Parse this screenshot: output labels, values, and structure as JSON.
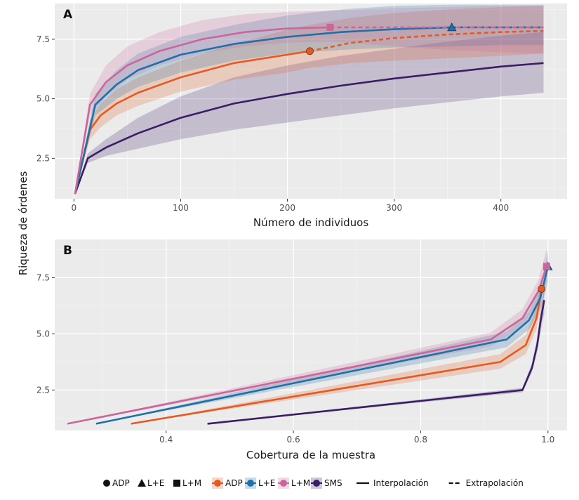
{
  "chart_data": [
    {
      "type": "line",
      "panel": "A",
      "xlabel": "Número de individuos",
      "ylabel": "Riqueza de órdenes",
      "xlim": [
        -18,
        462
      ],
      "ylim": [
        0.8,
        9.0
      ],
      "xticks": [
        0,
        100,
        200,
        300,
        400
      ],
      "yticks": [
        2.5,
        5.0,
        7.5
      ],
      "ytick_labels": [
        "2.5",
        "5.0",
        "7.5"
      ],
      "grid": true,
      "series": [
        {
          "name": "SMS",
          "color": "#3b1d66",
          "observed": {
            "x": [
              1,
              13,
              30,
              60,
              100,
              150,
              200,
              250,
              300,
              350,
              400,
              440
            ],
            "y": [
              1.0,
              2.5,
              2.95,
              3.55,
              4.2,
              4.8,
              5.2,
              5.55,
              5.85,
              6.1,
              6.35,
              6.5
            ]
          },
          "lower": [
            1.0,
            2.3,
            2.6,
            2.9,
            3.3,
            3.7,
            4.0,
            4.3,
            4.6,
            4.85,
            5.1,
            5.25
          ],
          "upper": [
            1.0,
            2.7,
            3.3,
            4.2,
            5.1,
            5.9,
            6.4,
            6.8,
            7.1,
            7.4,
            7.65,
            7.8
          ]
        },
        {
          "name": "ADP",
          "color": "#e35a22",
          "observed": {
            "x": [
              1,
              15,
              25,
              40,
              60,
              100,
              150,
              200,
              221
            ],
            "y": [
              1.0,
              3.7,
              4.3,
              4.8,
              5.25,
              5.9,
              6.5,
              6.85,
              7.0
            ]
          },
          "extrapolated": {
            "x": [
              221,
              260,
              300,
              350,
              400,
              440
            ],
            "y": [
              7.0,
              7.35,
              7.55,
              7.7,
              7.8,
              7.85
            ]
          },
          "marker_at": 221,
          "lower": [
            1.0,
            3.3,
            3.8,
            4.3,
            4.7,
            5.3,
            5.8,
            6.1,
            6.3,
            6.5,
            6.6,
            6.7,
            6.8,
            6.9
          ],
          "upper": [
            1.0,
            4.1,
            4.8,
            5.4,
            5.9,
            6.6,
            7.3,
            7.9,
            8.1,
            8.4,
            8.6,
            8.75,
            8.85,
            8.9
          ],
          "band_x": [
            1,
            15,
            25,
            40,
            60,
            100,
            150,
            200,
            221,
            260,
            300,
            350,
            400,
            440
          ]
        },
        {
          "name": "L+E",
          "color": "#1f6fa8",
          "observed": {
            "x": [
              1,
              20,
              40,
              60,
              100,
              150,
              200,
              250,
              300,
              354
            ],
            "y": [
              1.0,
              4.75,
              5.6,
              6.2,
              6.85,
              7.3,
              7.6,
              7.8,
              7.92,
              8.0
            ]
          },
          "extrapolated": {
            "x": [
              354,
              400,
              440
            ],
            "y": [
              8.0,
              8.0,
              8.0
            ]
          },
          "marker_at": 354,
          "lower": [
            1.0,
            4.3,
            5.0,
            5.5,
            6.1,
            6.6,
            6.9,
            7.05,
            7.15,
            7.2,
            7.25,
            7.25
          ],
          "upper": [
            1.0,
            5.2,
            6.2,
            6.9,
            7.6,
            8.1,
            8.5,
            8.75,
            8.9,
            8.95,
            8.95,
            8.95
          ],
          "band_x": [
            1,
            20,
            40,
            60,
            100,
            150,
            200,
            250,
            300,
            354,
            400,
            440
          ]
        },
        {
          "name": "L+M",
          "color": "#c9679b",
          "observed": {
            "x": [
              1,
              15,
              30,
              50,
              80,
              120,
              160,
              200,
              240
            ],
            "y": [
              1.0,
              4.75,
              5.7,
              6.4,
              7.0,
              7.5,
              7.8,
              7.95,
              8.0
            ]
          },
          "extrapolated": {
            "x": [
              240,
              300,
              350,
              400,
              440
            ],
            "y": [
              8.0,
              8.0,
              8.0,
              8.0,
              8.0
            ]
          },
          "marker_at": 240,
          "lower": [
            1.0,
            4.3,
            5.1,
            5.8,
            6.4,
            6.9,
            7.2,
            7.35,
            7.4,
            7.2,
            7.05,
            6.95,
            6.9
          ],
          "upper": [
            1.0,
            5.2,
            6.4,
            7.2,
            7.8,
            8.3,
            8.55,
            8.65,
            8.7,
            8.8,
            8.85,
            8.9,
            8.9
          ],
          "band_x": [
            1,
            15,
            30,
            50,
            80,
            120,
            160,
            200,
            240,
            300,
            350,
            400,
            440
          ]
        }
      ]
    },
    {
      "type": "line",
      "panel": "B",
      "xlabel": "Cobertura de la muestra",
      "ylabel": "Riqueza de órdenes",
      "xlim": [
        0.225,
        1.03
      ],
      "ylim": [
        0.7,
        9.2
      ],
      "xticks": [
        0.4,
        0.6,
        0.8,
        1.0
      ],
      "yticks": [
        2.5,
        5.0,
        7.5
      ],
      "ytick_labels": [
        "2.5",
        "5.0",
        "7.5"
      ],
      "grid": true,
      "series": [
        {
          "name": "SMS",
          "color": "#3b1d66",
          "observed": {
            "x": [
              0.465,
              0.96,
              0.975,
              0.983,
              0.988,
              0.991,
              0.994
            ],
            "y": [
              1.0,
              2.5,
              3.5,
              4.5,
              5.5,
              6.0,
              6.5
            ]
          },
          "lower": [
            1.0,
            2.4,
            3.3,
            4.2,
            5.0,
            5.5,
            5.9
          ],
          "upper": [
            1.0,
            2.6,
            3.7,
            4.8,
            6.0,
            6.5,
            7.1
          ]
        },
        {
          "name": "ADP",
          "color": "#e35a22",
          "observed": {
            "x": [
              0.345,
              0.925,
              0.965,
              0.982,
              0.99
            ],
            "y": [
              1.0,
              3.75,
              4.5,
              5.7,
              7.0
            ]
          },
          "marker_at": 0.99,
          "marker_y": 7.0,
          "lower": [
            1.0,
            3.45,
            4.1,
            5.2,
            6.4
          ],
          "upper": [
            1.0,
            4.1,
            4.95,
            6.2,
            7.6
          ]
        },
        {
          "name": "L+E",
          "color": "#1f6fa8",
          "observed": {
            "x": [
              0.29,
              0.935,
              0.97,
              0.988,
              1.0
            ],
            "y": [
              1.0,
              4.75,
              5.6,
              6.6,
              8.0
            ]
          },
          "marker_at": 1.0,
          "marker_y": 8.0,
          "lower": [
            1.0,
            4.4,
            5.2,
            6.1,
            7.3
          ],
          "upper": [
            1.0,
            5.1,
            6.0,
            7.1,
            8.7
          ]
        },
        {
          "name": "L+M",
          "color": "#c9679b",
          "observed": {
            "x": [
              0.245,
              0.91,
              0.96,
              0.985,
              0.998
            ],
            "y": [
              1.0,
              4.75,
              5.7,
              6.9,
              8.0
            ]
          },
          "marker_at": 0.998,
          "marker_y": 8.0,
          "lower": [
            1.0,
            4.45,
            5.3,
            6.4,
            7.3
          ],
          "upper": [
            1.0,
            5.05,
            6.1,
            7.4,
            8.8
          ]
        }
      ]
    }
  ],
  "panel_tags": [
    "A",
    "B"
  ],
  "legend": {
    "shape_items": [
      {
        "shape": "circle",
        "label": "ADP"
      },
      {
        "shape": "triangle",
        "label": "L+E"
      },
      {
        "shape": "square",
        "label": "L+M"
      }
    ],
    "color_items": [
      {
        "label": "ADP",
        "color": "#e35a22"
      },
      {
        "label": "L+E",
        "color": "#1f6fa8"
      },
      {
        "label": "L+M",
        "color": "#c9679b"
      },
      {
        "label": "SMS",
        "color": "#3b1d66"
      }
    ],
    "linetype_items": [
      {
        "style": "solid",
        "label": "Interpolación"
      },
      {
        "style": "dashed",
        "label": "Extrapolación"
      }
    ]
  },
  "colors": {
    "panel_bg": "#ebebeb",
    "grid": "#ffffff"
  }
}
